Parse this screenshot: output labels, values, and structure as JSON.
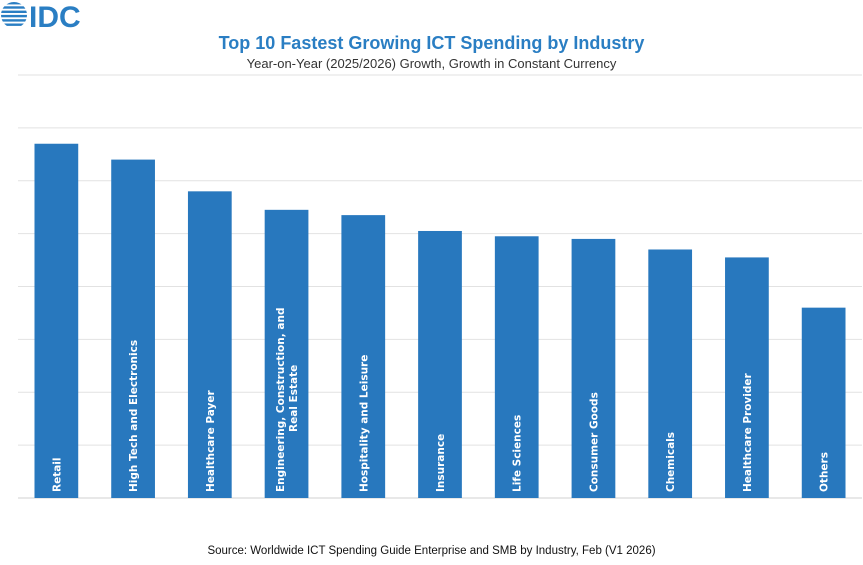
{
  "logo": {
    "text": "IDC",
    "color": "#2a7ec3"
  },
  "chart_data": {
    "type": "bar",
    "title": "Top 10 Fastest Growing ICT Spending by Industry",
    "subtitle": "Year-on-Year (2025/2026) Growth, Growth in Constant Currency",
    "source": "Source: Worldwide ICT Spending Guide Enterprise and SMB by Industry, Feb (V1 2026)",
    "categories": [
      "Retail",
      "High Tech and Electronics",
      "Healthcare Payer",
      "Engineering, Construction, and Real Estate",
      "Hospitality and Leisure",
      "Insurance",
      "Life Sciences",
      "Consumer Goods",
      "Chemicals",
      "Healthcare Provider",
      "Others"
    ],
    "values": [
      6.7,
      6.4,
      5.8,
      5.45,
      5.35,
      5.05,
      4.95,
      4.9,
      4.7,
      4.55,
      3.6
    ],
    "ylim": [
      0,
      8
    ],
    "grid": true,
    "y_tick_labels_shown": false,
    "legend": "none",
    "bar_color": "#2878be"
  }
}
